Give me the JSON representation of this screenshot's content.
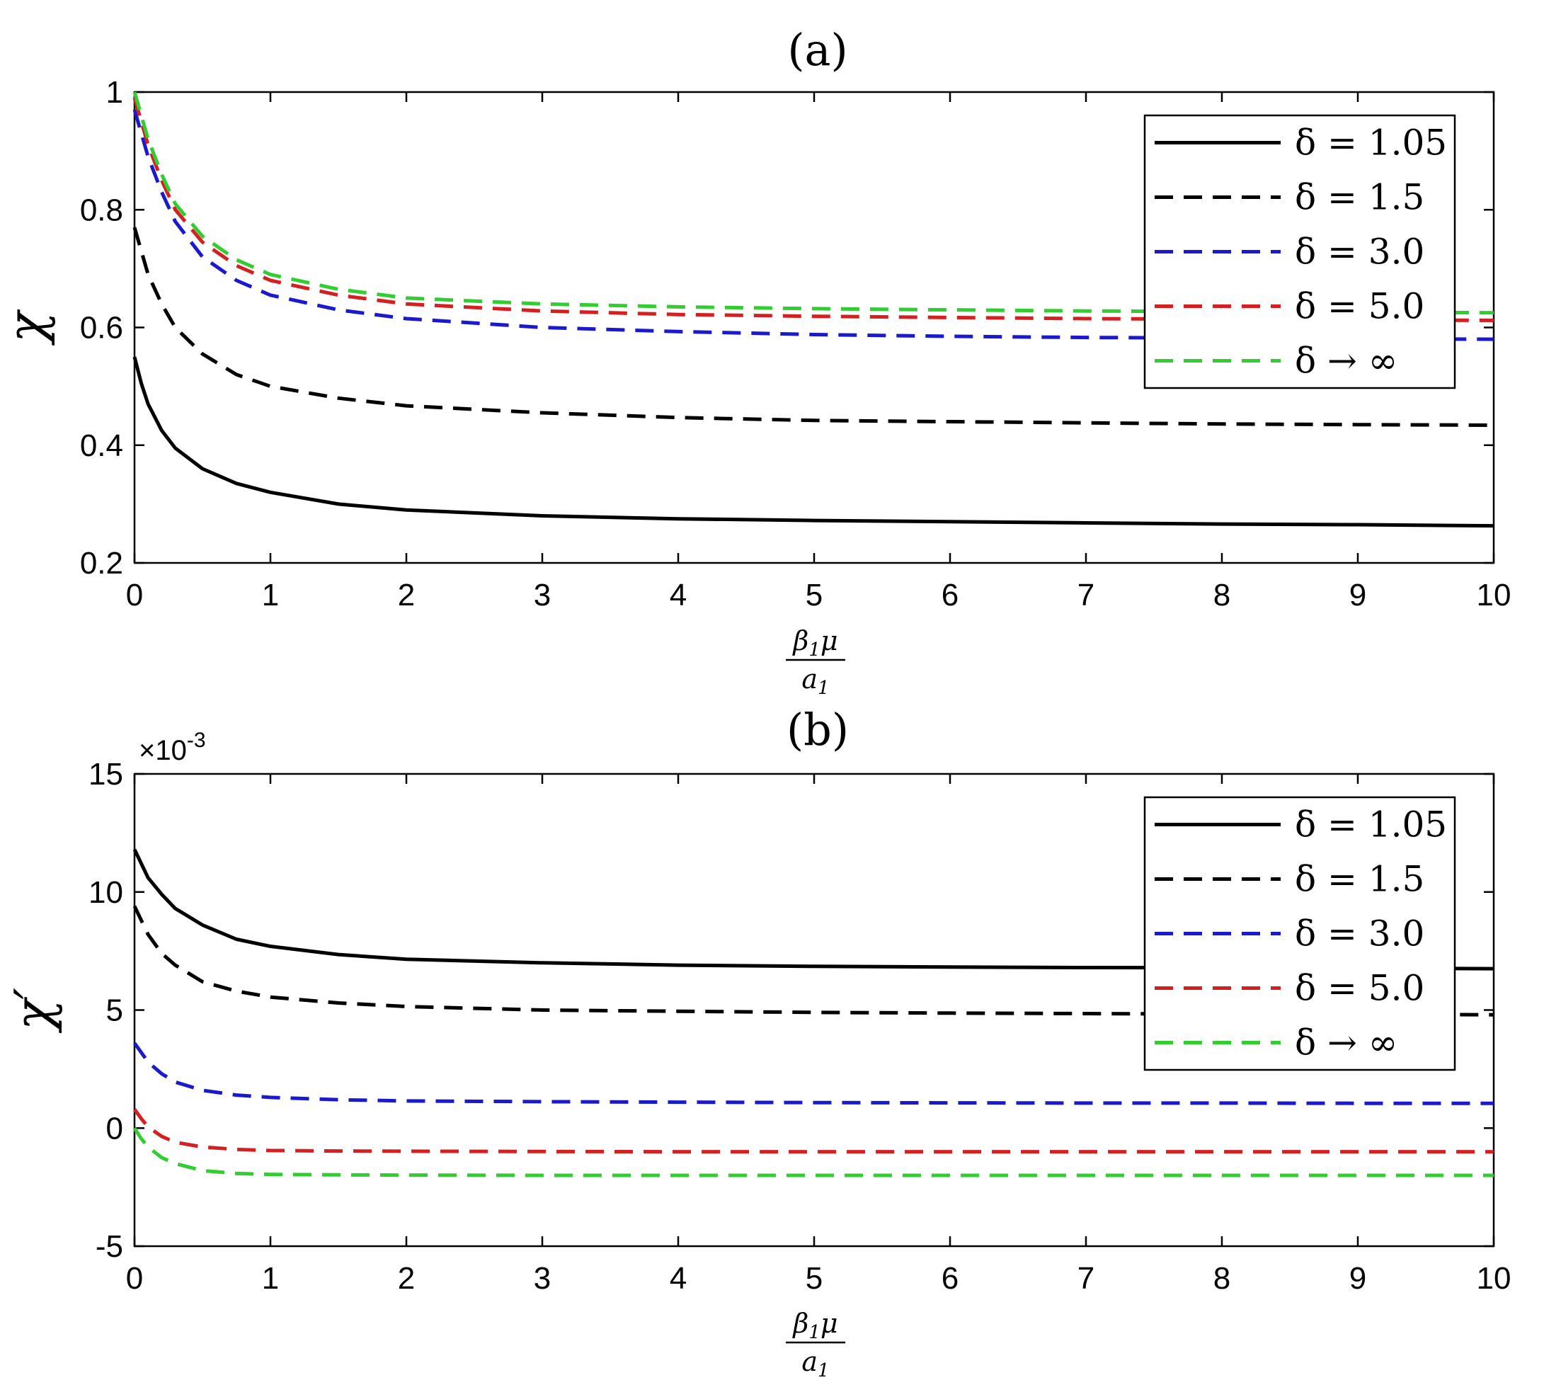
{
  "chart_data": [
    {
      "type": "line",
      "panel": "a",
      "title": "(a)",
      "xlabel": {
        "numerator": "β₁μ",
        "num_main": "β",
        "num_sub": "1",
        "num_tail": "μ",
        "denominator": "a₁",
        "den_main": "a",
        "den_sub": "1"
      },
      "ylabel": "χ",
      "xlim": [
        0,
        10
      ],
      "ylim": [
        0.2,
        1.0
      ],
      "xticks": [
        "0",
        "1",
        "2",
        "3",
        "4",
        "5",
        "6",
        "7",
        "8",
        "9",
        "10"
      ],
      "yticks": [
        "0.2",
        "0.4",
        "0.6",
        "0.8",
        "1"
      ],
      "ytick_values": [
        0.2,
        0.4,
        0.6,
        0.8,
        1.0
      ],
      "legend_location": "top-right",
      "x": [
        0,
        0.05,
        0.1,
        0.2,
        0.3,
        0.5,
        0.75,
        1,
        1.5,
        2,
        3,
        4,
        5,
        6,
        7,
        8,
        9,
        10
      ],
      "series": [
        {
          "name": "δ = 1.05",
          "color": "#000000",
          "dash": "solid",
          "values": [
            0.55,
            0.505,
            0.47,
            0.425,
            0.395,
            0.36,
            0.335,
            0.32,
            0.3,
            0.29,
            0.28,
            0.275,
            0.272,
            0.27,
            0.268,
            0.266,
            0.265,
            0.263
          ]
        },
        {
          "name": "δ = 1.5",
          "color": "#000000",
          "dash": "dashed",
          "values": [
            0.77,
            0.73,
            0.69,
            0.64,
            0.6,
            0.555,
            0.52,
            0.5,
            0.48,
            0.467,
            0.455,
            0.447,
            0.442,
            0.44,
            0.438,
            0.436,
            0.435,
            0.434
          ]
        },
        {
          "name": "δ = 3.0",
          "color": "#1a1acc",
          "dash": "dashed",
          "values": [
            0.97,
            0.93,
            0.89,
            0.83,
            0.78,
            0.72,
            0.68,
            0.655,
            0.63,
            0.615,
            0.6,
            0.593,
            0.588,
            0.585,
            0.583,
            0.582,
            0.581,
            0.58
          ]
        },
        {
          "name": "δ = 5.0",
          "color": "#d42020",
          "dash": "dashed",
          "values": [
            0.99,
            0.95,
            0.91,
            0.85,
            0.8,
            0.745,
            0.705,
            0.68,
            0.655,
            0.64,
            0.628,
            0.622,
            0.619,
            0.617,
            0.615,
            0.614,
            0.613,
            0.612
          ]
        },
        {
          "name": "δ → ∞",
          "color": "#33cc33",
          "dash": "dashed",
          "values": [
            1.0,
            0.96,
            0.92,
            0.86,
            0.81,
            0.755,
            0.715,
            0.69,
            0.665,
            0.65,
            0.64,
            0.635,
            0.632,
            0.63,
            0.628,
            0.627,
            0.626,
            0.625
          ]
        }
      ]
    },
    {
      "type": "line",
      "panel": "b",
      "title": "(b)",
      "multiplier_label": "×10",
      "multiplier_exponent": "-3",
      "xlabel": {
        "numerator": "β₁μ",
        "num_main": "β",
        "num_sub": "1",
        "num_tail": "μ",
        "denominator": "a₁",
        "den_main": "a",
        "den_sub": "1"
      },
      "ylabel": "χ′",
      "xlim": [
        0,
        10
      ],
      "ylim": [
        -5,
        15
      ],
      "units_note": "values in units of 10^-3",
      "xticks": [
        "0",
        "1",
        "2",
        "3",
        "4",
        "5",
        "6",
        "7",
        "8",
        "9",
        "10"
      ],
      "yticks": [
        "-5",
        "0",
        "5",
        "10",
        "15"
      ],
      "ytick_values": [
        -5,
        0,
        5,
        10,
        15
      ],
      "legend_location": "top-right",
      "x": [
        0,
        0.05,
        0.1,
        0.2,
        0.3,
        0.5,
        0.75,
        1,
        1.5,
        2,
        3,
        4,
        5,
        6,
        7,
        8,
        9,
        10
      ],
      "series": [
        {
          "name": "δ = 1.05",
          "color": "#000000",
          "dash": "solid",
          "values": [
            11.8,
            11.2,
            10.6,
            9.9,
            9.3,
            8.6,
            8.0,
            7.7,
            7.35,
            7.15,
            7.0,
            6.9,
            6.85,
            6.82,
            6.8,
            6.79,
            6.78,
            6.75
          ]
        },
        {
          "name": "δ = 1.5",
          "color": "#000000",
          "dash": "dashed",
          "values": [
            9.4,
            8.8,
            8.2,
            7.4,
            6.9,
            6.2,
            5.8,
            5.55,
            5.3,
            5.15,
            5.0,
            4.95,
            4.9,
            4.87,
            4.85,
            4.83,
            4.82,
            4.8
          ]
        },
        {
          "name": "δ = 3.0",
          "color": "#1a1acc",
          "dash": "dashed",
          "values": [
            3.6,
            3.2,
            2.8,
            2.3,
            1.95,
            1.6,
            1.4,
            1.3,
            1.2,
            1.15,
            1.12,
            1.1,
            1.08,
            1.07,
            1.06,
            1.06,
            1.05,
            1.05
          ]
        },
        {
          "name": "δ = 5.0",
          "color": "#d42020",
          "dash": "dashed",
          "values": [
            0.8,
            0.4,
            0.05,
            -0.35,
            -0.6,
            -0.8,
            -0.9,
            -0.95,
            -0.97,
            -0.98,
            -0.99,
            -1.0,
            -1.0,
            -1.0,
            -1.0,
            -1.0,
            -1.0,
            -1.0
          ]
        },
        {
          "name": "δ → ∞",
          "color": "#33cc33",
          "dash": "dashed",
          "values": [
            0.0,
            -0.45,
            -0.8,
            -1.25,
            -1.5,
            -1.8,
            -1.92,
            -1.96,
            -1.98,
            -1.99,
            -2.0,
            -2.0,
            -2.0,
            -2.0,
            -2.0,
            -2.0,
            -2.0,
            -2.0
          ]
        }
      ]
    }
  ]
}
